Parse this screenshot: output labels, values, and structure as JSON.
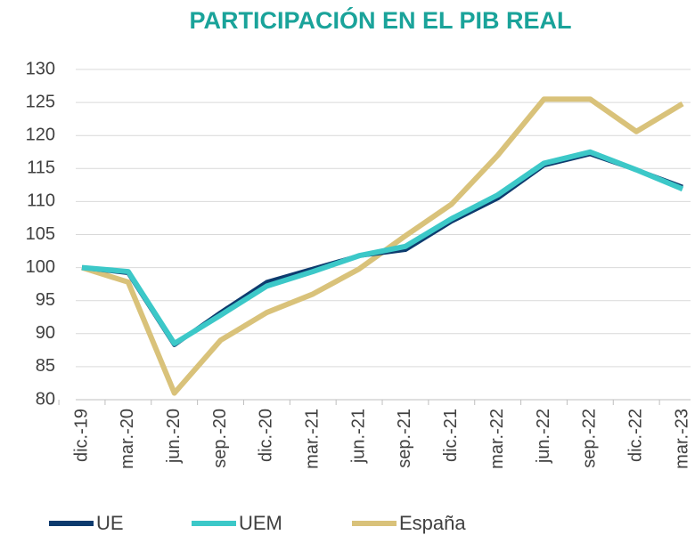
{
  "chart_data": {
    "type": "line",
    "title": "PARTICIPACIÓN EN EL PIB REAL",
    "categories": [
      "dic.-19",
      "mar.-20",
      "jun.-20",
      "sep.-20",
      "dic.-20",
      "mar.-21",
      "jun.-21",
      "sep.-21",
      "dic.-21",
      "mar.-22",
      "jun.-22",
      "sep.-22",
      "dic.-22",
      "mar.-23"
    ],
    "series": [
      {
        "name": "UE",
        "color": "#0d3b6e",
        "values": [
          100,
          99.2,
          88.3,
          93.2,
          97.8,
          99.8,
          101.8,
          102.7,
          107,
          110.5,
          115.5,
          117.2,
          114.8,
          112.2
        ]
      },
      {
        "name": "UEM",
        "color": "#3cc8c8",
        "values": [
          100,
          99.4,
          88.5,
          92.8,
          97.2,
          99.4,
          101.8,
          103.2,
          107.4,
          111,
          115.8,
          117.5,
          114.8,
          111.9
        ]
      },
      {
        "name": "España",
        "color": "#d9c27a",
        "values": [
          100,
          97.8,
          81,
          89,
          93.2,
          96,
          99.8,
          104.8,
          109.6,
          117,
          125.5,
          125.5,
          120.6,
          124.8
        ]
      }
    ],
    "ylim": [
      80,
      130
    ],
    "yticks": [
      80,
      85,
      90,
      95,
      100,
      105,
      110,
      115,
      120,
      125,
      130
    ],
    "grid": true
  }
}
